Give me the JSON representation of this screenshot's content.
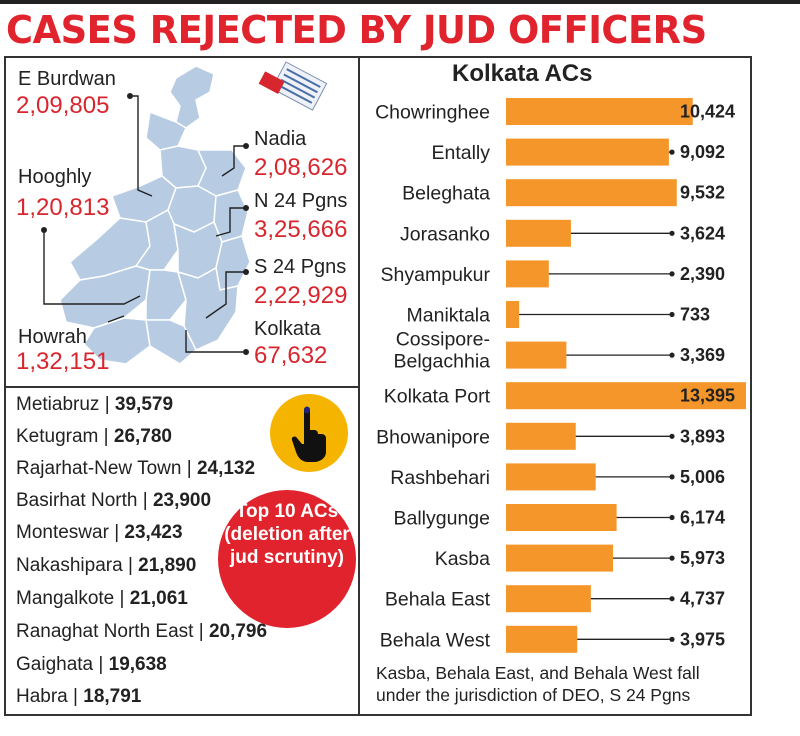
{
  "title": "CASES REJECTED BY JUD OFFICERS",
  "map": {
    "districts": [
      {
        "name": "E Burdwan",
        "value": "2,09,805"
      },
      {
        "name": "Hooghly",
        "value": "1,20,813"
      },
      {
        "name": "Howrah",
        "value": "1,32,151"
      },
      {
        "name": "Nadia",
        "value": "2,08,626"
      },
      {
        "name": "N 24 Pgns",
        "value": "3,25,666"
      },
      {
        "name": "S 24 Pgns",
        "value": "2,22,929"
      },
      {
        "name": "Kolkata",
        "value": "67,632"
      }
    ]
  },
  "top10": {
    "items": [
      {
        "name": "Metiabruz",
        "value": "39,579"
      },
      {
        "name": "Ketugram",
        "value": "26,780"
      },
      {
        "name": "Rajarhat-New Town",
        "value": "24,132"
      },
      {
        "name": "Basirhat North",
        "value": "23,900"
      },
      {
        "name": "Monteswar",
        "value": "23,423"
      },
      {
        "name": "Nakashipara",
        "value": "21,890"
      },
      {
        "name": "Mangalkote",
        "value": "21,061"
      },
      {
        "name": "Ranaghat North East",
        "value": "20,796"
      },
      {
        "name": "Gaighata",
        "value": "19,638"
      },
      {
        "name": "Habra",
        "value": "18,791"
      }
    ],
    "badge": "Top 10 ACs (deletion after jud scrutiny)"
  },
  "chart_data": {
    "type": "bar",
    "orientation": "horizontal",
    "title": "Kolkata ACs",
    "categories": [
      "Chowringhee",
      "Entally",
      "Beleghata",
      "Jorasanko",
      "Shyampukur",
      "Maniktala",
      "Cossipore-Belgachhia",
      "Kolkata Port",
      "Bhowanipore",
      "Rashbehari",
      "Ballygunge",
      "Kasba",
      "Behala East",
      "Behala West"
    ],
    "values": [
      10424,
      9092,
      9532,
      3624,
      2390,
      733,
      3369,
      13395,
      3893,
      5006,
      6174,
      5973,
      4737,
      3975
    ],
    "value_labels": [
      "10,424",
      "9,092",
      "9,532",
      "3,624",
      "2,390",
      "733",
      "3,369",
      "13,395",
      "3,893",
      "5,006",
      "6,174",
      "5,973",
      "4,737",
      "3,975"
    ],
    "bar_color": "#f5962a",
    "xlim": [
      0,
      13395
    ]
  },
  "footnote": "Kasba, Behala East, and Behala West fall under the jurisdiction of DEO, S 24 Pgns",
  "colors": {
    "accent": "#e0232c",
    "bar": "#f5962a",
    "badge_yellow": "#f5b400"
  },
  "icons": [
    "ballot-paper-icon",
    "inked-finger-icon"
  ]
}
